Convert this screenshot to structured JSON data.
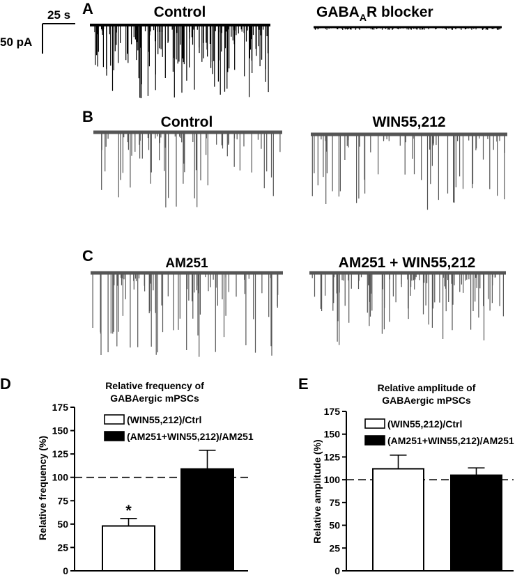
{
  "scale_bar": {
    "time": "25 s",
    "current": "50 pA"
  },
  "panel_A": {
    "letter": "A",
    "left_title": "Control",
    "right_title_main": "GABA",
    "right_title_sub": "A",
    "right_title_rest": "R blocker"
  },
  "panel_B": {
    "letter": "B",
    "left_title": "Control",
    "right_title": "WIN55,212"
  },
  "panel_C": {
    "letter": "C",
    "left_title": "AM251",
    "right_title": "AM251 + WIN55,212"
  },
  "colors": {
    "ink": "#000000",
    "open_bar": "#ffffff",
    "filled_bar": "#000000"
  },
  "chart_data": [
    {
      "panel": "D",
      "type": "bar",
      "title": "Relative frequency of GABAergic mPSCs",
      "title_lines": [
        "Relative frequency of",
        "GABAergic mPSCs"
      ],
      "ylabel": "Relative frequency (%)",
      "ylim": [
        0,
        175
      ],
      "yticks": [
        "0",
        "25",
        "50",
        "75",
        "100",
        "125",
        "150",
        "175"
      ],
      "reference_line": 100,
      "legend_position": "top-right",
      "series": [
        {
          "name": "(WIN55,212)/Ctrl",
          "value": 48,
          "error": 8,
          "fill": "white",
          "annotation": "*"
        },
        {
          "name": "(AM251+WIN55,212)/AM251",
          "value": 109,
          "error": 20,
          "fill": "black",
          "annotation": ""
        }
      ]
    },
    {
      "panel": "E",
      "type": "bar",
      "title": "Relative amplitude of GABAergic mPSCs",
      "title_lines": [
        "Relative amplitude of",
        "GABAergic mPSCs"
      ],
      "ylabel": "Relative amplitude (%)",
      "ylim": [
        0,
        175
      ],
      "yticks": [
        "0",
        "25",
        "50",
        "75",
        "100",
        "125",
        "150",
        "175"
      ],
      "reference_line": 100,
      "legend_position": "top-right",
      "series": [
        {
          "name": "(WIN55,212)/Ctrl",
          "value": 112,
          "error": 15,
          "fill": "white",
          "annotation": ""
        },
        {
          "name": "(AM251+WIN55,212)/AM251",
          "value": 105,
          "error": 8,
          "fill": "black",
          "annotation": ""
        }
      ]
    }
  ]
}
